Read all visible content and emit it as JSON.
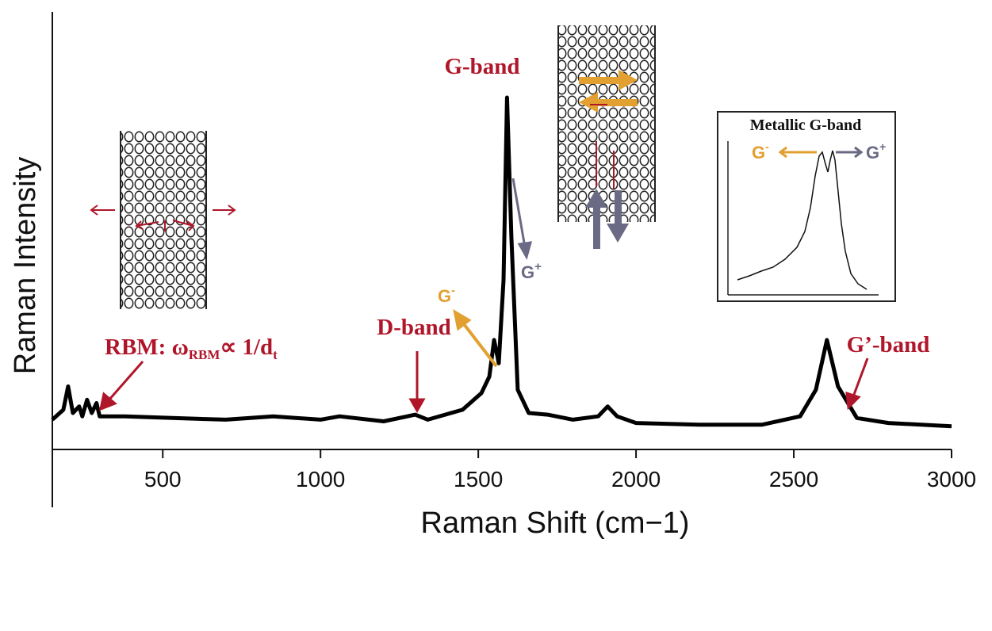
{
  "chart_data": {
    "type": "line",
    "xlabel": "Raman Shift (cm−1)",
    "ylabel": "Raman Intensity",
    "xlim": [
      150,
      3000
    ],
    "ylim": [
      0,
      1.05
    ],
    "xticks": [
      500,
      1000,
      1500,
      2000,
      2500,
      3000
    ],
    "grid": false,
    "series": [
      {
        "x": [
          150,
          185,
          200,
          215,
          235,
          245,
          260,
          275,
          290,
          300,
          380,
          530,
          700,
          850,
          1000,
          1060,
          1200,
          1300,
          1340,
          1450,
          1510,
          1535,
          1550,
          1565,
          1580,
          1591,
          1605,
          1625,
          1660,
          1720,
          1800,
          1880,
          1910,
          1940,
          2000,
          2200,
          2400,
          2520,
          2570,
          2605,
          2640,
          2700,
          2800,
          3000
        ],
        "y": [
          0.03,
          0.06,
          0.13,
          0.05,
          0.07,
          0.04,
          0.09,
          0.05,
          0.08,
          0.04,
          0.04,
          0.035,
          0.03,
          0.04,
          0.03,
          0.04,
          0.025,
          0.045,
          0.03,
          0.06,
          0.11,
          0.16,
          0.27,
          0.2,
          0.45,
          1.0,
          0.58,
          0.12,
          0.05,
          0.045,
          0.03,
          0.04,
          0.07,
          0.04,
          0.02,
          0.015,
          0.015,
          0.04,
          0.12,
          0.27,
          0.13,
          0.035,
          0.02,
          0.01
        ]
      }
    ],
    "annotations": {
      "g_band": "G-band",
      "d_band": "D-band",
      "g_prime_band": "G’-band",
      "rbm_prefix": "RBM: ω",
      "rbm_sub": "RBM",
      "rbm_mid": "∝ 1/d",
      "rbm_sub2": "t",
      "g_minus": "G",
      "g_plus": "G",
      "minus_sup": "-",
      "plus_sup": "+"
    },
    "inset": {
      "title": "Metallic G-band",
      "g_minus": "G",
      "g_plus": "G",
      "minus_sup": "-",
      "plus_sup": "+"
    }
  },
  "colors": {
    "red": "#b0162a",
    "gold": "#e2a030",
    "gray": "#6a6a85"
  }
}
